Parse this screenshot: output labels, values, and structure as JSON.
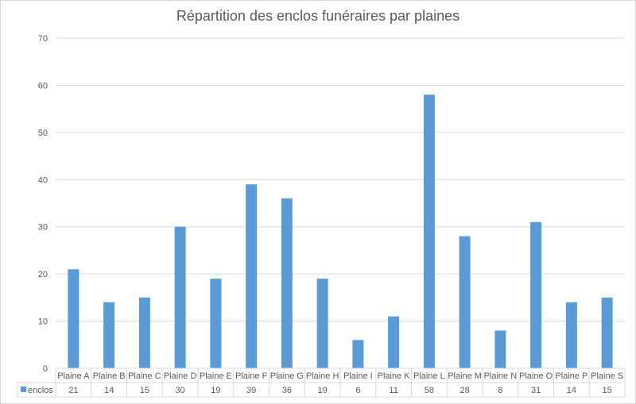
{
  "chart_data": {
    "type": "bar",
    "title": "Répartition des enclos funéraires par plaines",
    "xlabel": "",
    "ylabel": "",
    "ylim": [
      0,
      70
    ],
    "yticks": [
      0,
      10,
      20,
      30,
      40,
      50,
      60,
      70
    ],
    "grid": true,
    "legend": "data-table-left",
    "color": "#5b9bd5",
    "categories": [
      "Plaine A",
      "Plaine B",
      "Plaine C",
      "Plaine D",
      "Plaine E",
      "Plaine F",
      "Plaine G",
      "Plaine H",
      "Plaine I",
      "Plaine K",
      "Plaine L",
      "Plaine M",
      "Plaine N",
      "Plaine O",
      "Plaine P",
      "Plaine S"
    ],
    "series": [
      {
        "name": "enclos",
        "values": [
          21,
          14,
          15,
          30,
          19,
          39,
          36,
          19,
          6,
          11,
          58,
          28,
          8,
          31,
          14,
          15
        ]
      }
    ]
  }
}
